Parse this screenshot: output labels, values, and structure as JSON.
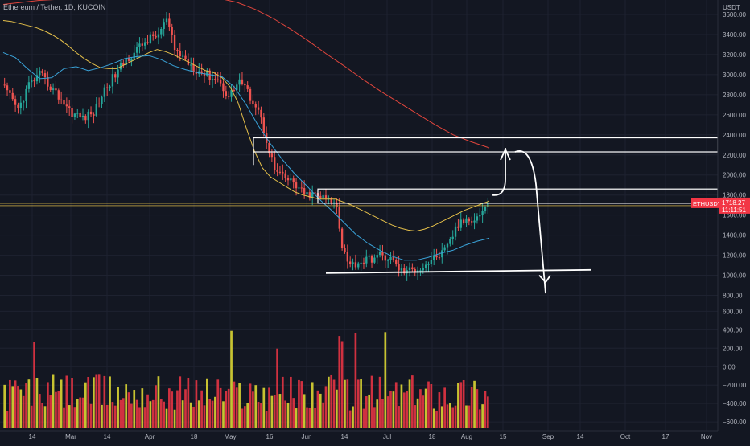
{
  "header": {
    "title": "Ethereum / Tether, 1D, KUCOIN"
  },
  "chart_data": {
    "type": "candlestick",
    "symbol": "ETHUSDT",
    "interval": "1D",
    "exchange": "KUCOIN",
    "price_axis": {
      "unit": "USDT",
      "range": [
        620,
        3680
      ],
      "ticks": [
        3600,
        3400,
        3200,
        3000,
        2800,
        2600,
        2400,
        2200,
        2000,
        1800,
        1600,
        1400,
        1200,
        1000,
        800
      ],
      "tick_labels": [
        "3600.00",
        "3400.00",
        "3200.00",
        "3000.00",
        "2800.00",
        "2600.00",
        "2400.00",
        "2200.00",
        "2000.00",
        "1800.00",
        "1600.00",
        "1400.00",
        "1200.00",
        "1000.00",
        "800.00"
      ]
    },
    "oscillator_axis": {
      "range": [
        -660,
        560
      ],
      "ticks": [
        600,
        400,
        200,
        0,
        -200,
        -400,
        -600
      ],
      "tick_labels": [
        "600.00",
        "400.00",
        "200.00",
        "0.00",
        "−200.00",
        "−400.00",
        "−600.00"
      ]
    },
    "x_axis": {
      "labels": [
        "14",
        "Mar",
        "14",
        "Apr",
        "18",
        "May",
        "16",
        "Jun",
        "14",
        "Jul",
        "18",
        "Aug",
        "15",
        "Sep",
        "14",
        "Oct",
        "17",
        "Nov"
      ]
    },
    "last_price": {
      "label": "ETHUSDT",
      "value": "1718.27",
      "countdown": "11:11:51",
      "color": "#f23645"
    },
    "series": [
      {
        "type": "line",
        "values": [
          3540,
          3530,
          3510,
          3490,
          3470,
          3440,
          3400,
          3350,
          3290,
          3220,
          3160,
          3110,
          3070,
          3060,
          3060,
          3100,
          3140,
          3180,
          3220,
          3250,
          3230,
          3200,
          3160,
          3120,
          3080,
          3040,
          3020,
          2970,
          2880,
          2720,
          2470,
          2240,
          2070,
          1980,
          1930,
          1880,
          1830,
          1800,
          1780,
          1760,
          1760,
          1760,
          1730,
          1700,
          1660,
          1620,
          1580,
          1540,
          1500,
          1470,
          1450,
          1440,
          1460,
          1490,
          1530,
          1570,
          1610,
          1650,
          1680,
          1710,
          1740
        ],
        "color": "#e5c04a"
      },
      {
        "type": "line",
        "values": [
          3700,
          3720,
          3740,
          3750,
          3760,
          3770,
          3780,
          3790,
          3800,
          3810,
          3800,
          3780,
          3760,
          3720,
          3650,
          3560,
          3450,
          3330,
          3200,
          3080,
          2950,
          2830,
          2720,
          2610,
          2500,
          2400,
          2330,
          2270
        ],
        "color": "#e0453c"
      },
      {
        "type": "line",
        "values": [
          3220,
          3170,
          3060,
          2960,
          2970,
          3060,
          3080,
          3040,
          3070,
          3110,
          3160,
          3180,
          3190,
          3150,
          3090,
          3050,
          3020,
          3000,
          2980,
          2880,
          2700,
          2490,
          2310,
          2150,
          2010,
          1890,
          1760,
          1650,
          1530,
          1410,
          1320,
          1250,
          1190,
          1150,
          1150,
          1180,
          1220,
          1250,
          1300,
          1340,
          1370
        ],
        "color": "#3aa3d9"
      }
    ],
    "annotations": {
      "resistance_lines": [
        2370,
        2230,
        1860
      ],
      "support_line": 1030,
      "projection": [
        1800,
        2230,
        820
      ]
    }
  }
}
